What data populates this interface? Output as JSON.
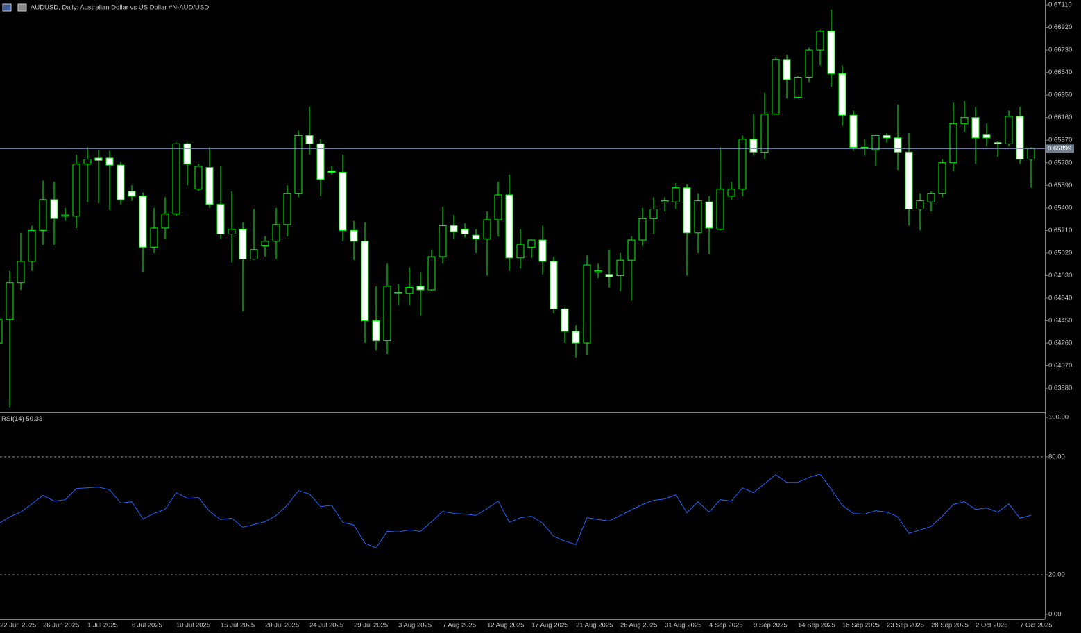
{
  "chart_data": [
    {
      "type": "candlestick",
      "title": "AUDUSD, Daily:  Australian Dollar vs US Dollar #N-AUD/USD",
      "categories": [
        "22 Jun 2025",
        null,
        null,
        null,
        "26 Jun 2025",
        null,
        null,
        null,
        "1 Jul 2025",
        null,
        null,
        null,
        "6 Jul 2025",
        null,
        null,
        null,
        "10 Jul 2025",
        null,
        null,
        null,
        "15 Jul 2025",
        null,
        null,
        null,
        "20 Jul 2025",
        null,
        null,
        null,
        "24 Jul 2025",
        null,
        null,
        null,
        "29 Jul 2025",
        null,
        null,
        null,
        "3 Aug 2025",
        null,
        null,
        null,
        "7 Aug 2025",
        null,
        null,
        null,
        "12 Aug 2025",
        null,
        null,
        null,
        "17 Aug 2025",
        null,
        null,
        null,
        "21 Aug 2025",
        null,
        null,
        null,
        "26 Aug 2025",
        null,
        null,
        null,
        "31 Aug 2025",
        null,
        null,
        null,
        "4 Sep 2025",
        null,
        null,
        null,
        "9 Sep 2025",
        null,
        null,
        null,
        "14 Sep 2025",
        null,
        null,
        null,
        "18 Sep 2025",
        null,
        null,
        null,
        "23 Sep 2025",
        null,
        null,
        null,
        "28 Sep 2025",
        null,
        null,
        null,
        "2 Oct 2025",
        null,
        null,
        null,
        "7 Oct 2025",
        null
      ],
      "open": [
        0.6426,
        0.6446,
        0.6477,
        0.6495,
        0.6521,
        0.6547,
        0.6533,
        0.6533,
        0.6577,
        0.6582,
        0.6582,
        0.6576,
        0.6554,
        0.655,
        0.6507,
        0.6523,
        0.6535,
        0.6594,
        0.6556,
        0.6574,
        0.6543,
        0.6518,
        0.6522,
        0.6497,
        0.6508,
        0.6512,
        0.6526,
        0.6552,
        0.6601,
        0.6594,
        0.6571,
        0.657,
        0.6521,
        0.6512,
        0.6445,
        0.6428,
        0.6468,
        0.6468,
        0.6474,
        0.6471,
        0.6499,
        0.6525,
        0.6522,
        0.6517,
        0.6514,
        0.653,
        0.6551,
        0.6498,
        0.6507,
        0.6513,
        0.6495,
        0.6455,
        0.6436,
        0.6426,
        0.6486,
        0.6484,
        0.6483,
        0.6496,
        0.6513,
        0.6531,
        0.6545,
        0.6545,
        0.6557,
        0.6519,
        0.6545,
        0.6522,
        0.655,
        0.6556,
        0.6598,
        0.6587,
        0.6619,
        0.6665,
        0.6633,
        0.665,
        0.6673,
        0.6689,
        0.6653,
        0.6618,
        0.6591,
        0.6589,
        0.6601,
        0.6599,
        0.6587,
        0.6539,
        0.6545,
        0.6552,
        0.6578,
        0.6611,
        0.6616,
        0.6602,
        0.6595,
        0.6594,
        0.6617,
        0.6581
      ],
      "high": [
        0.6458,
        0.6487,
        0.6519,
        0.6525,
        0.6563,
        0.6562,
        0.654,
        0.6585,
        0.6591,
        0.6589,
        0.6588,
        0.6579,
        0.6559,
        0.6553,
        0.654,
        0.6549,
        0.6595,
        0.6595,
        0.6577,
        0.6591,
        0.6575,
        0.6554,
        0.6528,
        0.6539,
        0.6516,
        0.654,
        0.6559,
        0.6605,
        0.6625,
        0.6598,
        0.6575,
        0.6585,
        0.6529,
        0.6528,
        0.6474,
        0.6493,
        0.6476,
        0.649,
        0.6486,
        0.6505,
        0.6541,
        0.6534,
        0.6527,
        0.6522,
        0.6537,
        0.6562,
        0.6568,
        0.6522,
        0.6514,
        0.6525,
        0.6499,
        0.6456,
        0.6441,
        0.65,
        0.6493,
        0.6505,
        0.6502,
        0.6516,
        0.654,
        0.6549,
        0.6549,
        0.6561,
        0.656,
        0.6552,
        0.655,
        0.6591,
        0.6562,
        0.6601,
        0.6619,
        0.6637,
        0.6667,
        0.6669,
        0.6651,
        0.6675,
        0.669,
        0.6707,
        0.666,
        0.6622,
        0.6598,
        0.6602,
        0.6603,
        0.6627,
        0.6603,
        0.6552,
        0.6554,
        0.6581,
        0.6629,
        0.663,
        0.6625,
        0.6611,
        0.6596,
        0.6622,
        0.6625,
        0.6591
      ],
      "low": [
        0.6423,
        0.6372,
        0.6471,
        0.6487,
        0.6509,
        0.6509,
        0.6529,
        0.6523,
        0.6545,
        0.6544,
        0.6538,
        0.6543,
        0.6546,
        0.6486,
        0.6502,
        0.6514,
        0.6533,
        0.6559,
        0.6554,
        0.654,
        0.6514,
        0.6494,
        0.6453,
        0.6496,
        0.6499,
        0.6497,
        0.6516,
        0.6549,
        0.6585,
        0.655,
        0.6568,
        0.6512,
        0.6496,
        0.6426,
        0.642,
        0.6417,
        0.6458,
        0.6458,
        0.6449,
        0.647,
        0.6493,
        0.6514,
        0.6515,
        0.6502,
        0.6483,
        0.6516,
        0.6487,
        0.6489,
        0.6498,
        0.6484,
        0.6451,
        0.6426,
        0.6414,
        0.6416,
        0.6481,
        0.6473,
        0.647,
        0.6462,
        0.6508,
        0.6518,
        0.6537,
        0.6539,
        0.6483,
        0.6502,
        0.6501,
        0.6521,
        0.6547,
        0.655,
        0.6584,
        0.6581,
        0.6619,
        0.6632,
        0.6632,
        0.6646,
        0.666,
        0.6642,
        0.6609,
        0.6588,
        0.6584,
        0.6575,
        0.6595,
        0.6572,
        0.6525,
        0.6521,
        0.6537,
        0.6549,
        0.6571,
        0.6604,
        0.6577,
        0.6592,
        0.6583,
        0.6592,
        0.6577,
        0.6557
      ],
      "close": [
        0.6446,
        0.6477,
        0.6495,
        0.6521,
        0.6547,
        0.6531,
        0.6534,
        0.6577,
        0.6581,
        0.658,
        0.6576,
        0.6547,
        0.655,
        0.6507,
        0.6523,
        0.6535,
        0.6594,
        0.6577,
        0.6575,
        0.6543,
        0.6518,
        0.6522,
        0.6497,
        0.6505,
        0.6512,
        0.6526,
        0.6552,
        0.6601,
        0.6594,
        0.6564,
        0.657,
        0.6521,
        0.6512,
        0.6445,
        0.6428,
        0.6474,
        0.6469,
        0.6473,
        0.6471,
        0.6499,
        0.6525,
        0.652,
        0.6518,
        0.6514,
        0.653,
        0.6551,
        0.6498,
        0.6509,
        0.6513,
        0.6495,
        0.6455,
        0.6436,
        0.6426,
        0.6492,
        0.6487,
        0.6482,
        0.6496,
        0.6513,
        0.6531,
        0.6539,
        0.6546,
        0.6557,
        0.6519,
        0.6546,
        0.6523,
        0.6556,
        0.6556,
        0.6598,
        0.6587,
        0.6619,
        0.6665,
        0.6648,
        0.665,
        0.6673,
        0.6689,
        0.6653,
        0.6618,
        0.6591,
        0.659,
        0.6601,
        0.6599,
        0.6587,
        0.6539,
        0.6546,
        0.6552,
        0.6578,
        0.6611,
        0.6616,
        0.6599,
        0.6599,
        0.6594,
        0.6617,
        0.6581,
        0.659
      ],
      "up_fill": "#000000",
      "down_fill": "#ffffff",
      "wick_color": "#00ff00",
      "last_price": {
        "value": 0.65899,
        "label": "0.65899"
      },
      "ylim": [
        0.63688,
        0.67151
      ],
      "yticks": [
        {
          "value": 0.6711,
          "label": "0.67110"
        },
        {
          "value": 0.6692,
          "label": "0.66920"
        },
        {
          "value": 0.6673,
          "label": "0.66730"
        },
        {
          "value": 0.6654,
          "label": "0.66540"
        },
        {
          "value": 0.6635,
          "label": "0.66350"
        },
        {
          "value": 0.6616,
          "label": "0.66160"
        },
        {
          "value": 0.6597,
          "label": "0.65970"
        },
        {
          "value": 0.6578,
          "label": "0.65780"
        },
        {
          "value": 0.6559,
          "label": "0.65590"
        },
        {
          "value": 0.654,
          "label": "0.65400"
        },
        {
          "value": 0.6521,
          "label": "0.65210"
        },
        {
          "value": 0.6502,
          "label": "0.65020"
        },
        {
          "value": 0.6483,
          "label": "0.64830"
        },
        {
          "value": 0.6464,
          "label": "0.64640"
        },
        {
          "value": 0.6445,
          "label": "0.64450"
        },
        {
          "value": 0.6426,
          "label": "0.64260"
        },
        {
          "value": 0.6407,
          "label": "0.64070"
        },
        {
          "value": 0.6388,
          "label": "0.63880"
        }
      ],
      "grid": false
    },
    {
      "type": "line",
      "title": "RSI(14)",
      "values": [
        46.0,
        49.5,
        51.9,
        56.1,
        60.4,
        57.5,
        58.2,
        63.9,
        64.2,
        64.6,
        63.2,
        56.5,
        57.2,
        48.4,
        51.2,
        53.3,
        61.8,
        58.9,
        59.3,
        52.3,
        48.1,
        48.8,
        44.2,
        45.6,
        47.0,
        50.2,
        55.4,
        62.8,
        61.1,
        54.7,
        55.4,
        46.7,
        45.3,
        36.1,
        33.7,
        42.1,
        41.8,
        42.8,
        42.1,
        47.0,
        52.3,
        51.2,
        50.9,
        50.2,
        53.7,
        57.5,
        46.7,
        49.1,
        49.8,
        46.3,
        39.6,
        37.2,
        35.4,
        49.1,
        48.1,
        47.4,
        50.2,
        53.0,
        55.8,
        57.9,
        58.6,
        60.7,
        51.6,
        57.2,
        51.9,
        58.2,
        57.5,
        64.2,
        61.8,
        66.3,
        70.9,
        67.0,
        67.0,
        69.5,
        71.2,
        63.5,
        55.4,
        51.2,
        50.9,
        52.6,
        51.9,
        49.5,
        41.1,
        42.8,
        44.6,
        49.8,
        55.8,
        57.2,
        53.3,
        54.0,
        51.9,
        56.1,
        48.8,
        50.33
      ],
      "color": "#1e64ff",
      "ylim": [
        -2.5,
        101.8
      ],
      "yticks": [
        {
          "value": 100,
          "label": "100.00"
        },
        {
          "value": 80,
          "label": "80.00"
        },
        {
          "value": 20,
          "label": "20.00"
        },
        {
          "value": 0,
          "label": "0.00"
        }
      ]
    }
  ]
}
